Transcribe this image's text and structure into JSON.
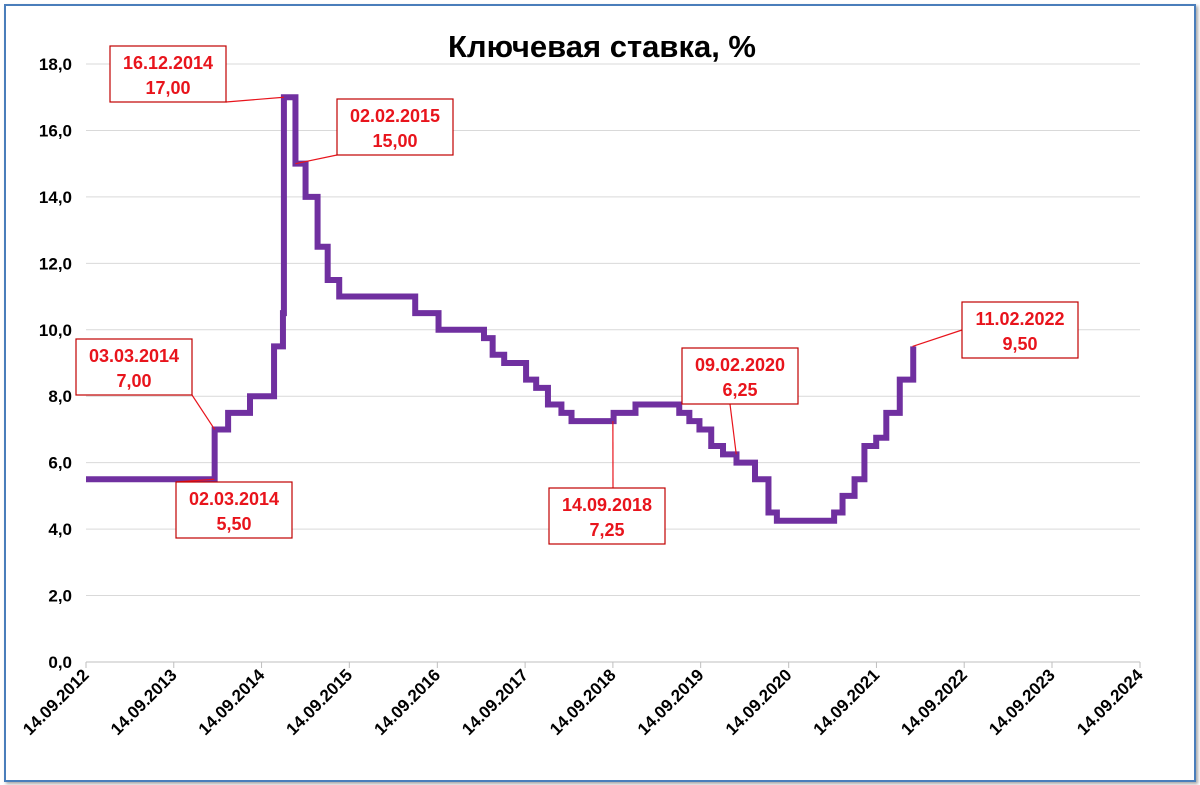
{
  "chart_data": {
    "type": "line",
    "title": "Ключевая ставка, %",
    "xlabel": "",
    "ylabel": "",
    "ylim": [
      0,
      18
    ],
    "y_ticks": [
      "0,0",
      "2,0",
      "4,0",
      "6,0",
      "8,0",
      "10,0",
      "12,0",
      "14,0",
      "16,0",
      "18,0"
    ],
    "y_tick_values": [
      0,
      2,
      4,
      6,
      8,
      10,
      12,
      14,
      16,
      18
    ],
    "x_ticks": [
      "14.09.2012",
      "14.09.2013",
      "14.09.2014",
      "14.09.2015",
      "14.09.2016",
      "14.09.2017",
      "14.09.2018",
      "14.09.2019",
      "14.09.2020",
      "14.09.2021",
      "14.09.2022",
      "14.09.2023",
      "14.09.2024"
    ],
    "grid": "horizontal",
    "line_color": "#7030a0",
    "series": [
      {
        "name": "",
        "x": [
          "2012-09-14",
          "2013-09-13",
          "2014-03-03",
          "2014-04-28",
          "2014-07-28",
          "2014-11-05",
          "2014-12-12",
          "2014-12-16",
          "2015-02-02",
          "2015-03-16",
          "2015-05-05",
          "2015-06-16",
          "2015-08-03",
          "2016-06-14",
          "2016-09-19",
          "2017-03-27",
          "2017-05-02",
          "2017-06-19",
          "2017-09-18",
          "2017-10-30",
          "2017-12-18",
          "2018-02-12",
          "2018-03-26",
          "2018-09-17",
          "2018-12-17",
          "2019-06-17",
          "2019-07-29",
          "2019-09-09",
          "2019-10-28",
          "2019-12-16",
          "2020-02-10",
          "2020-04-27",
          "2020-06-22",
          "2020-07-27",
          "2021-03-22",
          "2021-04-26",
          "2021-06-15",
          "2021-07-26",
          "2021-09-13",
          "2021-10-25",
          "2021-12-20",
          "2022-02-14"
        ],
        "values": [
          5.5,
          5.5,
          7.0,
          7.5,
          8.0,
          9.5,
          10.5,
          17.0,
          15.0,
          14.0,
          12.5,
          11.5,
          11.0,
          10.5,
          10.0,
          9.75,
          9.25,
          9.0,
          8.5,
          8.25,
          7.75,
          7.5,
          7.25,
          7.5,
          7.75,
          7.5,
          7.25,
          7.0,
          6.5,
          6.25,
          6.0,
          5.5,
          4.5,
          4.25,
          4.5,
          5.0,
          5.5,
          6.5,
          6.75,
          7.5,
          8.5,
          9.5
        ]
      }
    ],
    "annotations": [
      {
        "date": "16.12.2014",
        "value": "17,00"
      },
      {
        "date": "02.02.2015",
        "value": "15,00"
      },
      {
        "date": "03.03.2014",
        "value": "7,00"
      },
      {
        "date": "02.03.2014",
        "value": "5,50"
      },
      {
        "date": "14.09.2018",
        "value": "7,25"
      },
      {
        "date": "09.02.2020",
        "value": "6,25"
      },
      {
        "date": "11.02.2022",
        "value": "9,50"
      }
    ]
  }
}
